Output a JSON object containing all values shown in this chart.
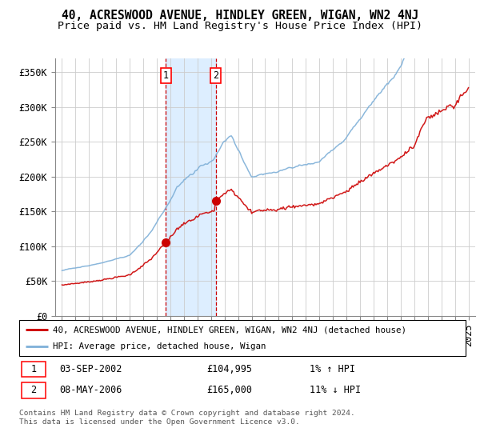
{
  "title": "40, ACRESWOOD AVENUE, HINDLEY GREEN, WIGAN, WN2 4NJ",
  "subtitle": "Price paid vs. HM Land Registry's House Price Index (HPI)",
  "ylabel_ticks": [
    "£0",
    "£50K",
    "£100K",
    "£150K",
    "£200K",
    "£250K",
    "£300K",
    "£350K"
  ],
  "ytick_vals": [
    0,
    50000,
    100000,
    150000,
    200000,
    250000,
    300000,
    350000
  ],
  "ylim": [
    0,
    370000
  ],
  "xlim_start": 1994.5,
  "xlim_end": 2025.5,
  "purchase1": {
    "date_x": 2002.67,
    "price": 104995,
    "label": "1"
  },
  "purchase2": {
    "date_x": 2006.36,
    "price": 165000,
    "label": "2"
  },
  "legend_line1": "40, ACRESWOOD AVENUE, HINDLEY GREEN, WIGAN, WN2 4NJ (detached house)",
  "legend_line2": "HPI: Average price, detached house, Wigan",
  "table_row1": [
    "1",
    "03-SEP-2002",
    "£104,995",
    "1% ↑ HPI"
  ],
  "table_row2": [
    "2",
    "08-MAY-2006",
    "£165,000",
    "11% ↓ HPI"
  ],
  "footnote": "Contains HM Land Registry data © Crown copyright and database right 2024.\nThis data is licensed under the Open Government Licence v3.0.",
  "hpi_color": "#7fb0d8",
  "price_color": "#cc0000",
  "bg_color": "#ffffff",
  "shaded_color": "#ddeeff",
  "grid_color": "#cccccc",
  "title_fontsize": 10.5,
  "subtitle_fontsize": 9.5,
  "tick_fontsize": 8.5
}
